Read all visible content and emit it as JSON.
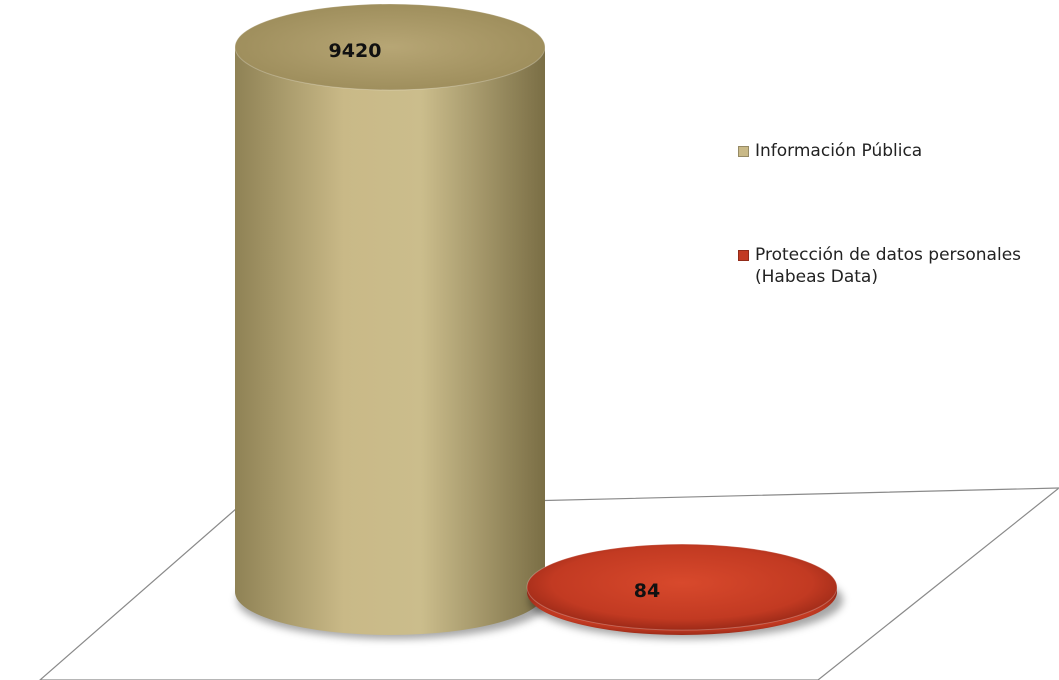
{
  "chart_data": {
    "type": "bar",
    "style": "3d-cylinder",
    "categories": [
      "Información Pública",
      "Protección de datos personales (Habeas Data)"
    ],
    "values": [
      9420,
      84
    ],
    "data_labels": [
      "9420",
      "84"
    ],
    "colors": [
      "#c9b987",
      "#c23a22"
    ],
    "legend": {
      "placement": "right",
      "entries": [
        "Información Pública",
        "Protección de datos personales\n(Habeas Data)"
      ]
    },
    "grid": false
  }
}
